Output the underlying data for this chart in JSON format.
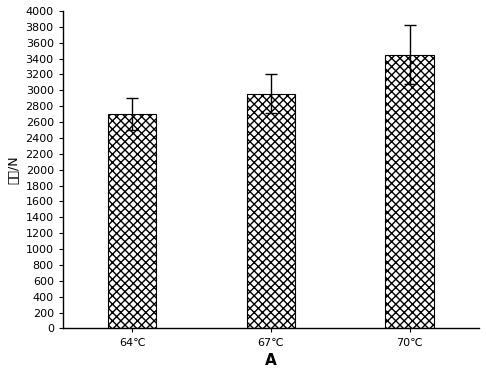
{
  "categories": [
    "64℃",
    "67℃",
    "70℃"
  ],
  "values": [
    2700,
    2960,
    3450
  ],
  "errors": [
    200,
    250,
    370
  ],
  "bar_color": "#ffffff",
  "bar_edgecolor": "#000000",
  "hatch": "xxxx",
  "xlabel": "A",
  "ylabel": "硬度/N",
  "ylim": [
    0,
    4000
  ],
  "yticks": [
    0,
    200,
    400,
    600,
    800,
    1000,
    1200,
    1400,
    1600,
    1800,
    2000,
    2200,
    2400,
    2600,
    2800,
    3000,
    3200,
    3400,
    3600,
    3800,
    4000
  ],
  "bar_width": 0.35,
  "x_positions": [
    0.5,
    1.5,
    2.5
  ],
  "xlim": [
    0,
    3.0
  ],
  "figsize": [
    4.86,
    3.75
  ],
  "dpi": 100,
  "tick_fontsize": 8,
  "xlabel_fontsize": 11,
  "ylabel_fontsize": 9
}
